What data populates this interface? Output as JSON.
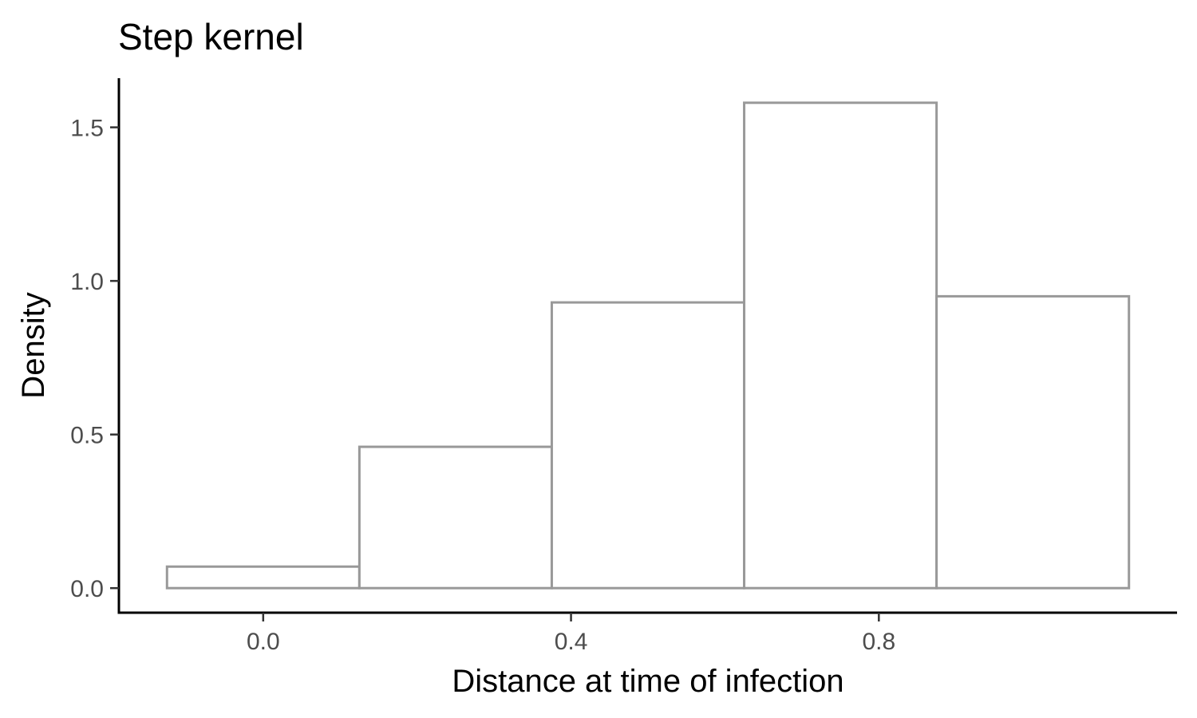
{
  "chart_data": {
    "type": "bar",
    "title": "Step kernel",
    "xlabel": "Distance at time of infection",
    "ylabel": "Density",
    "xlim": [
      -0.1875,
      1.1875
    ],
    "ylim": [
      -0.08,
      1.66
    ],
    "x_ticks": [
      {
        "value": 0.0,
        "label": "0.0"
      },
      {
        "value": 0.4,
        "label": "0.4"
      },
      {
        "value": 0.8,
        "label": "0.8"
      }
    ],
    "y_ticks": [
      {
        "value": 0.0,
        "label": "0.0"
      },
      {
        "value": 0.5,
        "label": "0.5"
      },
      {
        "value": 1.0,
        "label": "1.0"
      },
      {
        "value": 1.5,
        "label": "1.5"
      }
    ],
    "bins": [
      {
        "xmin": -0.125,
        "xmax": 0.125,
        "value": 0.07
      },
      {
        "xmin": 0.125,
        "xmax": 0.375,
        "value": 0.46
      },
      {
        "xmin": 0.375,
        "xmax": 0.625,
        "value": 0.93
      },
      {
        "xmin": 0.625,
        "xmax": 0.875,
        "value": 1.58
      },
      {
        "xmin": 0.875,
        "xmax": 1.125,
        "value": 0.95
      }
    ],
    "bar_fill": "#ffffff",
    "bar_outline": "#999999",
    "grid": false,
    "legend": "none"
  }
}
